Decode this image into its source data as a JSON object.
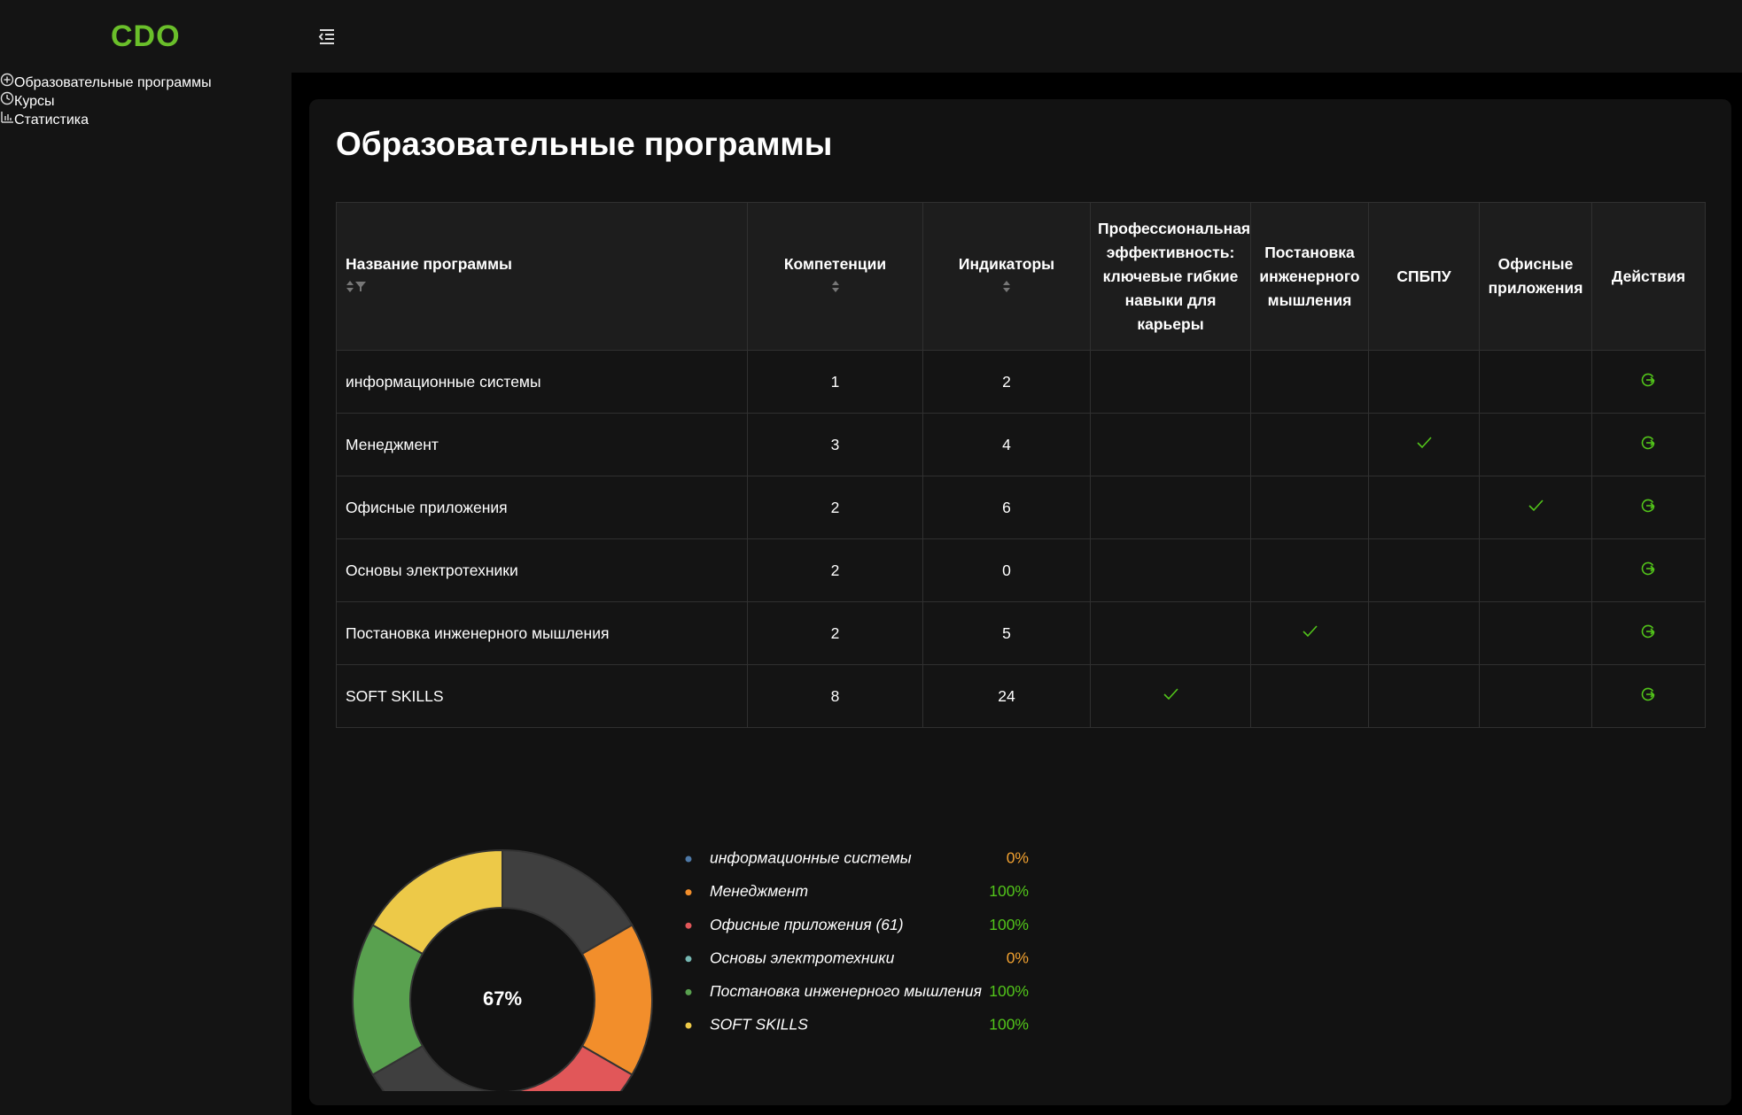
{
  "header": {
    "logo": "CDO"
  },
  "sidebar": {
    "menu": [
      "Образовательные программы",
      "Курсы",
      "Статистика"
    ]
  },
  "page_title": "Образовательные программы",
  "table": {
    "headers": [
      "Название программы",
      "Компетенции",
      "Индикаторы",
      "Профессиональная эффективность: ключевые гибкие навыки для карьеры",
      "Постановка инженерного мышления",
      "СПБПУ",
      "Офисные приложения",
      "Действия"
    ],
    "rows": [
      {
        "name": "информационные системы",
        "competencies": 1,
        "indicators": 2,
        "checks": [
          false,
          false,
          false,
          false
        ]
      },
      {
        "name": "Менеджмент",
        "competencies": 3,
        "indicators": 4,
        "checks": [
          false,
          false,
          true,
          false
        ]
      },
      {
        "name": "Офисные приложения",
        "competencies": 2,
        "indicators": 6,
        "checks": [
          false,
          false,
          false,
          true
        ]
      },
      {
        "name": "Основы электротехники",
        "competencies": 2,
        "indicators": 0,
        "checks": [
          false,
          false,
          false,
          false
        ]
      },
      {
        "name": "Постановка инженерного мышления",
        "competencies": 2,
        "indicators": 5,
        "checks": [
          false,
          true,
          false,
          false
        ]
      },
      {
        "name": "SOFT SKILLS",
        "competencies": 8,
        "indicators": 24,
        "checks": [
          true,
          false,
          false,
          false
        ]
      }
    ]
  },
  "chart_data": {
    "type": "donut",
    "center_label": "67%",
    "categories": [
      "информационные системы",
      "Менеджмент",
      "Офисные приложения (61)",
      "Основы электротехники",
      "Постановка инженерного мышления",
      "SOFT SKILLS"
    ],
    "values": [
      0,
      100,
      100,
      0,
      100,
      100
    ],
    "value_labels": [
      "0%",
      "100%",
      "100%",
      "0%",
      "100%",
      "100%"
    ],
    "colors": [
      "#4e79a7",
      "#f28e2b",
      "#e15759",
      "#76b7b2",
      "#59a14f",
      "#edc948"
    ],
    "empty_color": "#3f3f3f"
  }
}
